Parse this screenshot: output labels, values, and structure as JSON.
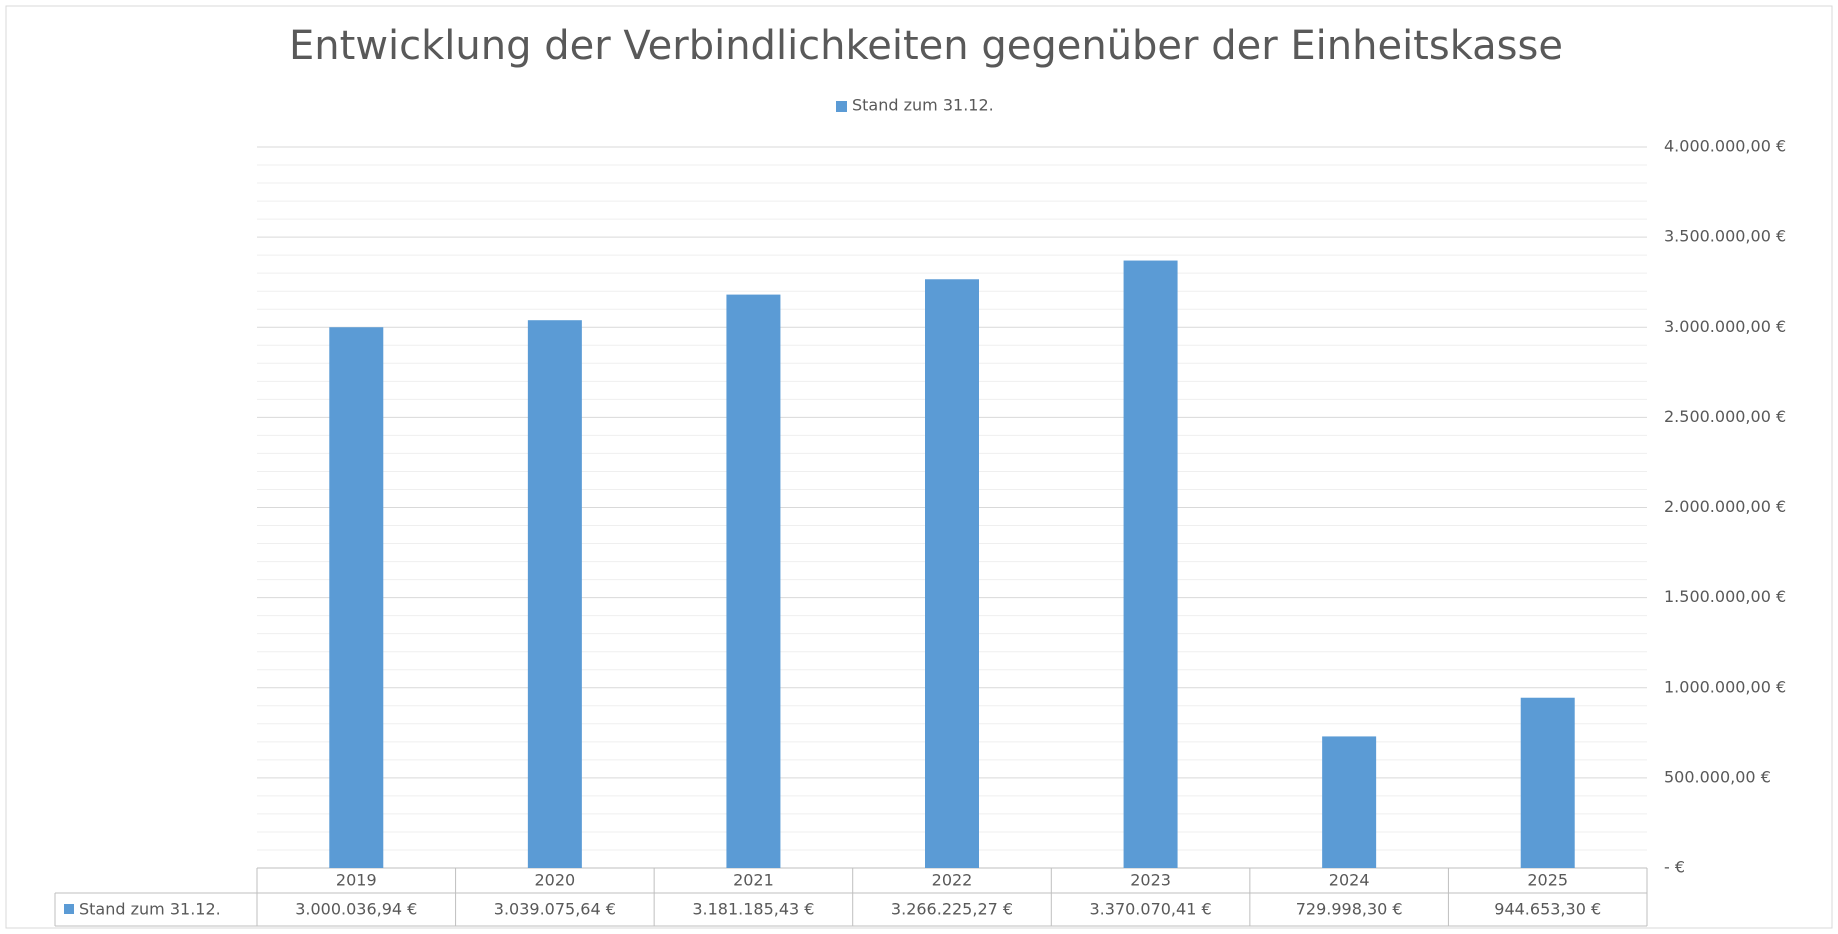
{
  "chart_data": {
    "type": "bar",
    "title": "Entwicklung der Verbindlichkeiten gegenüber der Einheitskasse",
    "categories": [
      "2019",
      "2020",
      "2021",
      "2022",
      "2023",
      "2024",
      "2025"
    ],
    "series": [
      {
        "name": "Stand zum 31.12.",
        "color": "#5b9bd5",
        "values": [
          3000036.94,
          3039075.64,
          3181185.43,
          3266225.27,
          3370070.41,
          729998.3,
          944653.3
        ],
        "value_labels": [
          "3.000.036,94 €",
          "3.039.075,64 €",
          "3.181.185,43 €",
          "3.266.225,27 €",
          "3.370.070,41 €",
          "729.998,30 €",
          "944.653,30 €"
        ]
      }
    ],
    "ylim": [
      0,
      4000000
    ],
    "yticks": [
      {
        "value": 0,
        "label": "- €"
      },
      {
        "value": 500000,
        "label": "500.000,00 €"
      },
      {
        "value": 1000000,
        "label": "1.000.000,00 €"
      },
      {
        "value": 1500000,
        "label": "1.500.000,00 €"
      },
      {
        "value": 2000000,
        "label": "2.000.000,00 €"
      },
      {
        "value": 2500000,
        "label": "2.500.000,00 €"
      },
      {
        "value": 3000000,
        "label": "3.000.000,00 €"
      },
      {
        "value": 3500000,
        "label": "3.500.000,00 €"
      },
      {
        "value": 4000000,
        "label": "4.000.000,00 €"
      }
    ],
    "grid": true,
    "minor_grid": true,
    "y_axis_side": "right",
    "legend": "top"
  }
}
